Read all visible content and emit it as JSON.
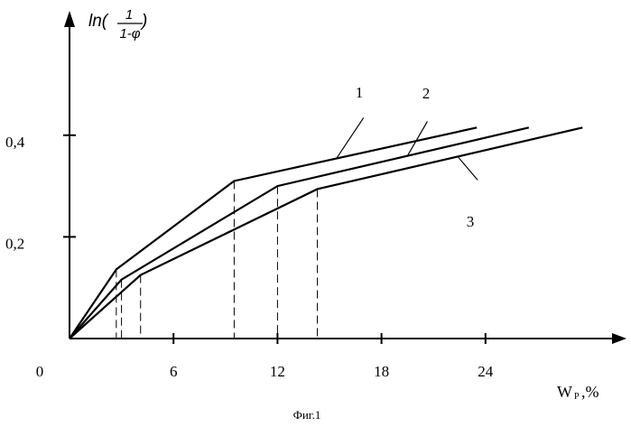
{
  "chart_data": {
    "type": "line",
    "ylabel": {
      "prefix": "ln(",
      "numerator": "1",
      "denominator": "1-φ",
      "suffix": ")"
    },
    "xlabel": {
      "main": "W",
      "subscript": "P",
      "suffix": ",%"
    },
    "caption": "Фиг.1",
    "x_ticks": [
      {
        "value": 0,
        "label": "0"
      },
      {
        "value": 6,
        "label": "6"
      },
      {
        "value": 12,
        "label": "12"
      },
      {
        "value": 18,
        "label": "18"
      },
      {
        "value": 24,
        "label": "24"
      }
    ],
    "y_ticks": [
      {
        "value": 0.2,
        "label": "0,2"
      },
      {
        "value": 0.4,
        "label": "0,4"
      }
    ],
    "xlim": [
      0,
      31
    ],
    "ylim": [
      0,
      0.62
    ],
    "grid": false,
    "series": [
      {
        "name": "1",
        "x": [
          0,
          2.7,
          9.5,
          23.5
        ],
        "y": [
          0,
          0.136,
          0.31,
          0.415
        ]
      },
      {
        "name": "2",
        "x": [
          0,
          3.0,
          12.0,
          26.5
        ],
        "y": [
          0,
          0.116,
          0.3,
          0.415
        ]
      },
      {
        "name": "3",
        "x": [
          0,
          4.1,
          14.3,
          29.6
        ],
        "y": [
          0,
          0.125,
          0.294,
          0.415
        ]
      }
    ],
    "drop_lines": [
      {
        "x": 2.7,
        "y": 0.136
      },
      {
        "x": 3.0,
        "y": 0.116
      },
      {
        "x": 4.1,
        "y": 0.125
      },
      {
        "x": 9.5,
        "y": 0.31
      },
      {
        "x": 12.0,
        "y": 0.3
      },
      {
        "x": 14.3,
        "y": 0.294
      }
    ],
    "series_labels": [
      {
        "text": "1",
        "series": 0,
        "at_x": 15.4
      },
      {
        "text": "2",
        "series": 1,
        "at_x": 19.5
      },
      {
        "text": "3",
        "series": 2,
        "at_x": 22.4
      }
    ]
  }
}
